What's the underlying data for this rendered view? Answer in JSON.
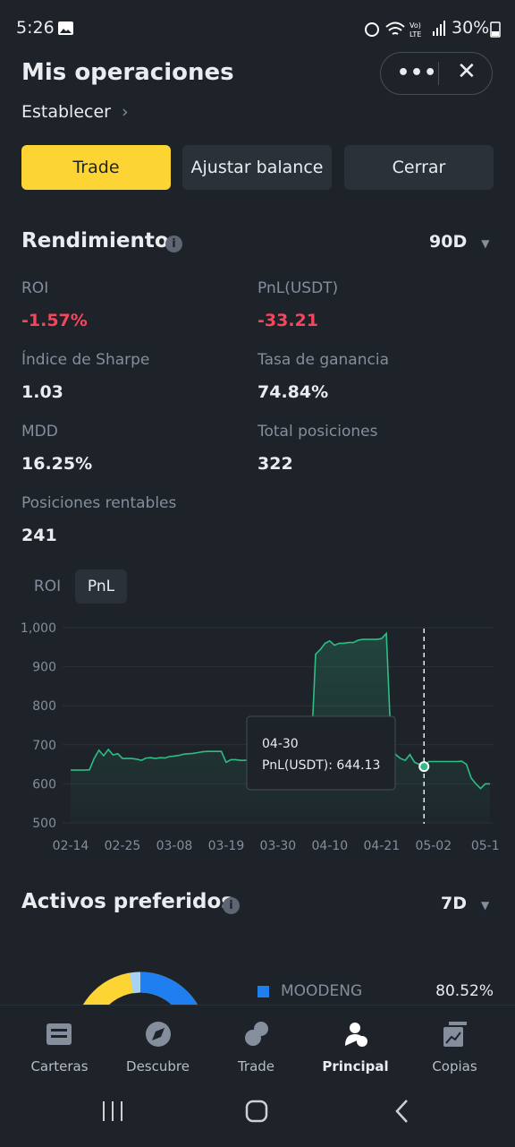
{
  "status_bar": {
    "time": "5:26",
    "battery": "30%"
  },
  "header": {
    "title": "Mis operaciones",
    "subtitle": "Establecer"
  },
  "buttons": [
    "Trade",
    "Ajustar balance",
    "Cerrar"
  ],
  "performance": {
    "title": "Rendimiento",
    "period": "90D",
    "stats": [
      {
        "label": "ROI",
        "value": "-1.57%"
      },
      {
        "label": "PnL(USDT)",
        "value": "-33.21"
      },
      {
        "label": "Índice de Sharpe",
        "value": "1.03"
      },
      {
        "label": "Tasa de ganancia",
        "value": "74.84%"
      },
      {
        "label": "MDD",
        "value": "16.25%"
      },
      {
        "label": "Total posiciones",
        "value": "322"
      },
      {
        "label": "Posiciones rentables",
        "value": "241"
      }
    ]
  },
  "chart_tabs": [
    "ROI",
    "PnL"
  ],
  "chart_data": {
    "type": "line",
    "categories": [
      "02-14",
      null,
      null,
      null,
      null,
      null,
      null,
      null,
      null,
      null,
      null,
      "02-25",
      null,
      null,
      null,
      null,
      null,
      null,
      null,
      null,
      null,
      null,
      "03-08",
      null,
      null,
      null,
      null,
      null,
      null,
      null,
      null,
      null,
      null,
      "03-19",
      null,
      null,
      null,
      null,
      null,
      null,
      null,
      null,
      null,
      null,
      "03-30",
      null,
      null,
      null,
      null,
      null,
      null,
      null,
      null,
      null,
      null,
      "04-10",
      null,
      null,
      null,
      null,
      null,
      null,
      null,
      null,
      null,
      null,
      "04-21",
      null,
      null,
      null,
      null,
      null,
      null,
      null,
      null,
      null,
      null,
      "05-02",
      null,
      null,
      null,
      null,
      null,
      null,
      null,
      null,
      null,
      null,
      "05-1",
      null
    ],
    "values": [
      635,
      635,
      635,
      635,
      636,
      665,
      686,
      672,
      688,
      674,
      677,
      665,
      665,
      665,
      663,
      660,
      666,
      667,
      665,
      667,
      666,
      670,
      671,
      673,
      676,
      677,
      678,
      680,
      682,
      683,
      683,
      683,
      683,
      655,
      662,
      662,
      660,
      660,
      662,
      665,
      665,
      665,
      664,
      665,
      666,
      665,
      666,
      667,
      667,
      666,
      666,
      668,
      932,
      944,
      960,
      966,
      955,
      960,
      960,
      962,
      962,
      968,
      970,
      970,
      970,
      970,
      972,
      985,
      700,
      675,
      665,
      660,
      675,
      655,
      650,
      644.13,
      657,
      657,
      657,
      657,
      657,
      657,
      657,
      658,
      650,
      615,
      600,
      588,
      600,
      600
    ],
    "color": "#2ebd85",
    "ylim": [
      500,
      1000
    ],
    "yticks": [
      500,
      600,
      700,
      800,
      900,
      {
        "value": 1000,
        "label": "1,000"
      }
    ],
    "grid": true,
    "tooltip": {
      "title": "04-30",
      "label": "PnL(USDT): 644.13"
    }
  },
  "assets": {
    "title": "Activos preferidos",
    "period": "7D",
    "items": [
      {
        "name": "MOODENG",
        "value": 80.52,
        "value_label": "80.52%",
        "color": "#1f7ef0"
      }
    ]
  },
  "nav": [
    "Carteras",
    "Descubre",
    "Trade",
    "Principal",
    "Copias"
  ]
}
